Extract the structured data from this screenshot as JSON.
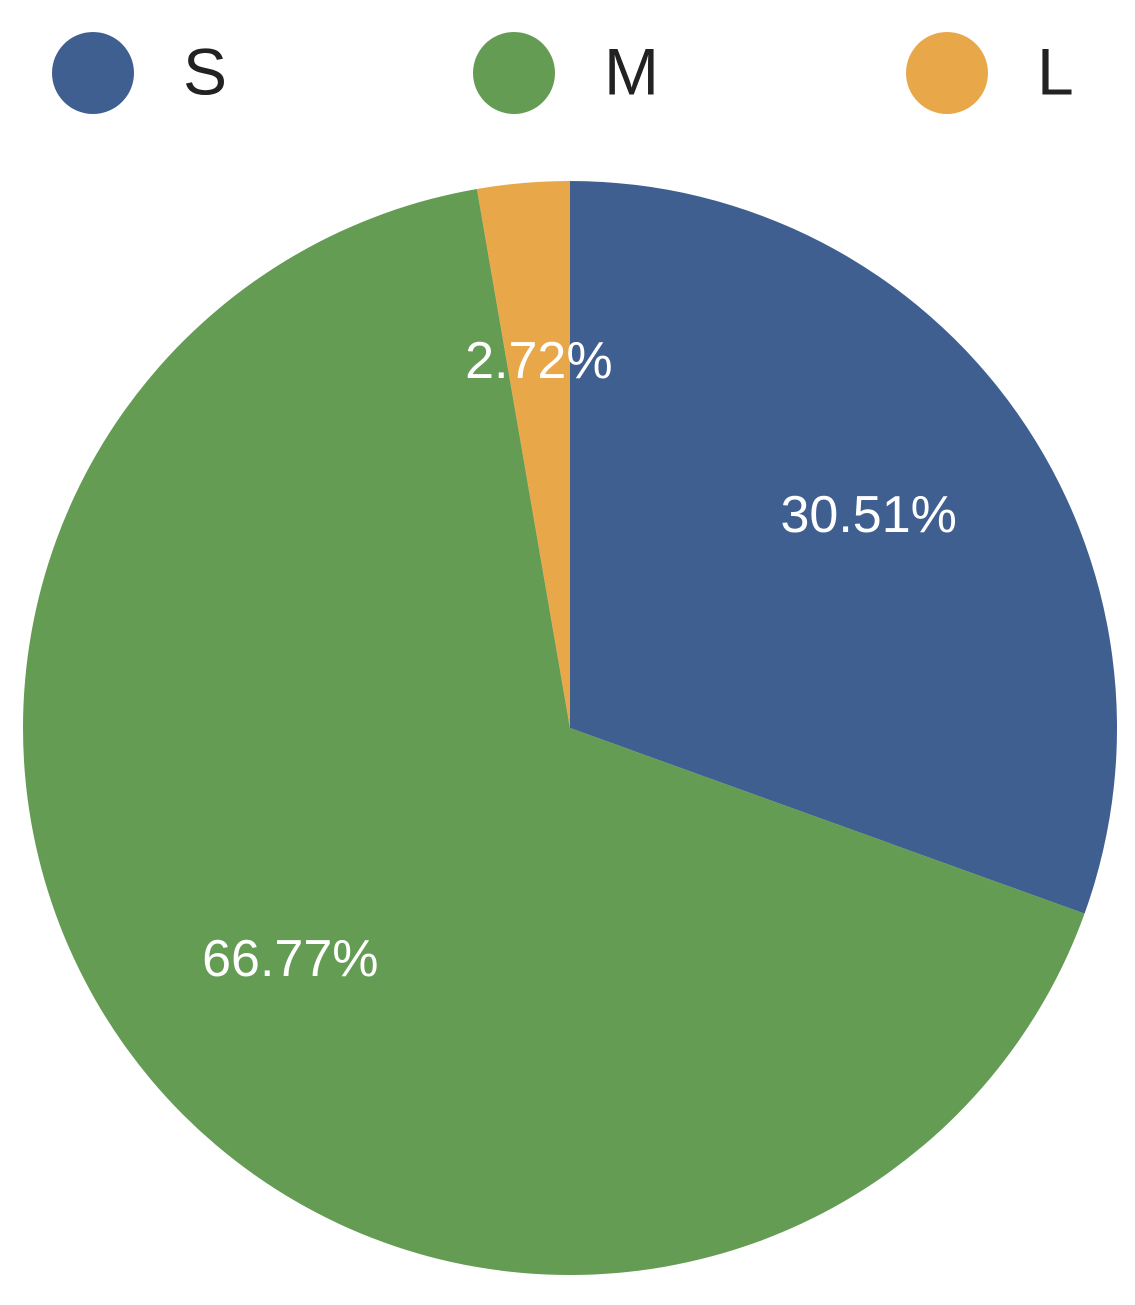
{
  "chart_data": {
    "type": "pie",
    "categories": [
      "S",
      "M",
      "L"
    ],
    "values": [
      30.51,
      66.77,
      2.72
    ],
    "value_labels": [
      "30.51%",
      "66.77%",
      "2.72%"
    ],
    "colors": [
      "#3f5f91",
      "#659c54",
      "#e8a84a"
    ],
    "legend": "top"
  }
}
